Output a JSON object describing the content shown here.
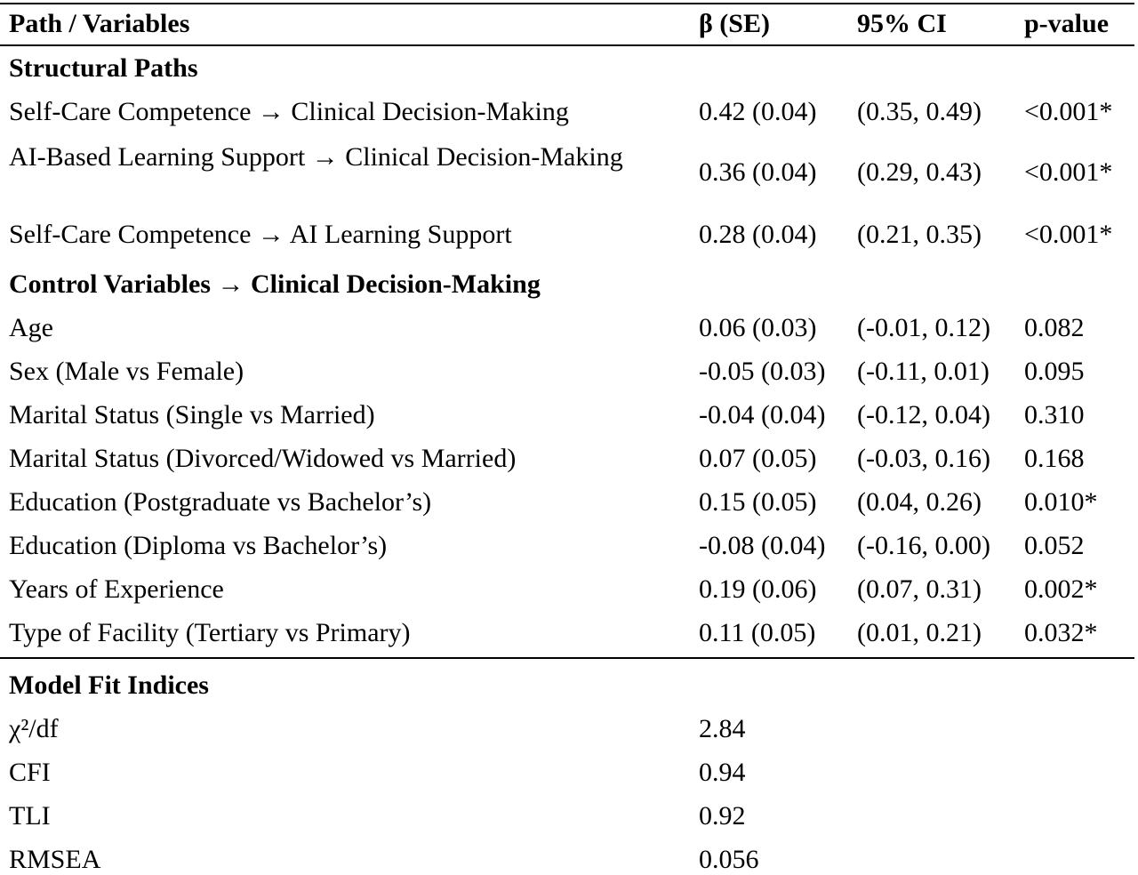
{
  "header": {
    "col1": "Path / Variables",
    "col2": "β (SE)",
    "col3": "95% CI",
    "col4": "p-value"
  },
  "sections": {
    "structural": "Structural Paths",
    "controls": "Control Variables → Clinical Decision-Making",
    "fit": "Model Fit Indices"
  },
  "structural_rows": [
    {
      "label": "Self-Care Competence → Clinical Decision-Making",
      "beta": "0.42 (0.04)",
      "ci": "(0.35, 0.49)",
      "p": "<0.001*"
    },
    {
      "label": "AI-Based Learning Support → Clinical Decision-Making",
      "beta": "0.36 (0.04)",
      "ci": "(0.29, 0.43)",
      "p": "<0.001*"
    },
    {
      "label": "Self-Care Competence → AI Learning Support",
      "beta": "0.28 (0.04)",
      "ci": "(0.21, 0.35)",
      "p": "<0.001*"
    }
  ],
  "control_rows": [
    {
      "label": "Age",
      "beta": "0.06 (0.03)",
      "ci": "(-0.01, 0.12)",
      "p": "0.082"
    },
    {
      "label": "Sex (Male vs Female)",
      "beta": "-0.05 (0.03)",
      "ci": "(-0.11, 0.01)",
      "p": "0.095"
    },
    {
      "label": "Marital Status (Single vs Married)",
      "beta": "-0.04 (0.04)",
      "ci": "(-0.12, 0.04)",
      "p": "0.310"
    },
    {
      "label": "Marital Status (Divorced/Widowed vs Married)",
      "beta": "0.07 (0.05)",
      "ci": "(-0.03, 0.16)",
      "p": "0.168"
    },
    {
      "label": "Education (Postgraduate vs Bachelor’s)",
      "beta": "0.15 (0.05)",
      "ci": "(0.04, 0.26)",
      "p": "0.010*"
    },
    {
      "label": "Education (Diploma vs Bachelor’s)",
      "beta": "-0.08 (0.04)",
      "ci": "(-0.16, 0.00)",
      "p": "0.052"
    },
    {
      "label": "Years of Experience",
      "beta": "0.19 (0.06)",
      "ci": "(0.07, 0.31)",
      "p": "0.002*"
    },
    {
      "label": "Type of Facility (Tertiary vs Primary)",
      "beta": "0.11 (0.05)",
      "ci": "(0.01, 0.21)",
      "p": "0.032*"
    }
  ],
  "fit_rows": [
    {
      "label": "χ²/df",
      "value": "2.84"
    },
    {
      "label": "CFI",
      "value": "0.94"
    },
    {
      "label": "TLI",
      "value": "0.92"
    },
    {
      "label": "RMSEA",
      "value": "0.056"
    }
  ]
}
